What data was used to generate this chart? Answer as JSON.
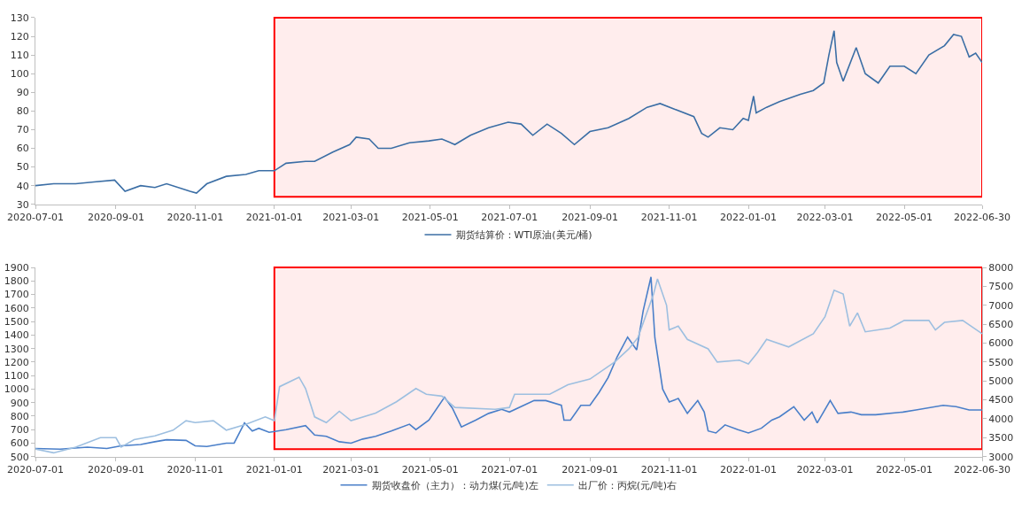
{
  "chart_data": [
    {
      "type": "line",
      "legend": "bottom",
      "xlim": [
        "2020-07-01",
        "2022-06-30"
      ],
      "xticks": [
        "2020-07-01",
        "2020-09-01",
        "2020-11-01",
        "2021-01-01",
        "2021-03-01",
        "2021-05-01",
        "2021-07-01",
        "2021-09-01",
        "2021-11-01",
        "2022-01-01",
        "2022-03-01",
        "2022-05-01",
        "2022-06-30"
      ],
      "ylim": [
        30,
        130
      ],
      "yticks": [
        30,
        40,
        50,
        60,
        70,
        80,
        90,
        100,
        110,
        120,
        130
      ],
      "bands": [
        {
          "axis": "x",
          "from": "2021-01-01",
          "to": "2022-06-30",
          "color": "#ff0000"
        }
      ],
      "series": [
        {
          "name": "期货结算价：WTI原油(美元/桶)",
          "color": "#3b6ea5",
          "x": [
            "2020-07-01",
            "2020-07-15",
            "2020-08-01",
            "2020-08-15",
            "2020-08-31",
            "2020-09-08",
            "2020-09-20",
            "2020-10-01",
            "2020-10-10",
            "2020-10-28",
            "2020-11-02",
            "2020-11-10",
            "2020-11-25",
            "2020-12-10",
            "2020-12-20",
            "2021-01-01",
            "2021-01-10",
            "2021-01-25",
            "2021-02-01",
            "2021-02-15",
            "2021-02-28",
            "2021-03-05",
            "2021-03-15",
            "2021-03-22",
            "2021-04-01",
            "2021-04-15",
            "2021-04-30",
            "2021-05-10",
            "2021-05-20",
            "2021-06-01",
            "2021-06-15",
            "2021-06-30",
            "2021-07-10",
            "2021-07-19",
            "2021-07-30",
            "2021-08-10",
            "2021-08-20",
            "2021-09-01",
            "2021-09-15",
            "2021-10-01",
            "2021-10-15",
            "2021-10-25",
            "2021-11-05",
            "2021-11-20",
            "2021-11-26",
            "2021-12-01",
            "2021-12-10",
            "2021-12-20",
            "2021-12-28",
            "2022-01-01",
            "2022-01-05",
            "2022-01-07",
            "2022-01-15",
            "2022-01-25",
            "2022-02-10",
            "2022-02-20",
            "2022-02-28",
            "2022-03-04",
            "2022-03-08",
            "2022-03-10",
            "2022-03-15",
            "2022-03-25",
            "2022-04-01",
            "2022-04-11",
            "2022-04-20",
            "2022-05-01",
            "2022-05-10",
            "2022-05-20",
            "2022-06-01",
            "2022-06-08",
            "2022-06-14",
            "2022-06-20",
            "2022-06-25",
            "2022-06-30"
          ],
          "values": [
            40,
            41,
            41,
            42,
            43,
            37,
            40,
            39,
            41,
            37,
            36,
            41,
            45,
            46,
            48,
            48,
            52,
            53,
            53,
            58,
            62,
            66,
            65,
            60,
            60,
            63,
            64,
            65,
            62,
            67,
            71,
            74,
            73,
            67,
            73,
            68,
            62,
            69,
            71,
            76,
            82,
            84,
            81,
            77,
            68,
            66,
            71,
            70,
            76,
            75,
            88,
            79,
            82,
            85,
            89,
            91,
            95,
            110,
            123,
            106,
            96,
            114,
            100,
            95,
            104,
            104,
            100,
            110,
            115,
            121,
            120,
            109,
            111,
            106
          ]
        }
      ]
    },
    {
      "type": "line",
      "legend": "bottom",
      "xlim": [
        "2020-07-01",
        "2022-06-30"
      ],
      "xticks": [
        "2020-07-01",
        "2020-09-01",
        "2020-11-01",
        "2021-01-01",
        "2021-03-01",
        "2021-05-01",
        "2021-07-01",
        "2021-09-01",
        "2021-11-01",
        "2022-01-01",
        "2022-03-01",
        "2022-05-01",
        "2022-06-30"
      ],
      "ylim": [
        500,
        1900
      ],
      "yticks": [
        500,
        600,
        700,
        800,
        900,
        1000,
        1100,
        1200,
        1300,
        1400,
        1500,
        1600,
        1700,
        1800,
        1900
      ],
      "y2lim": [
        3000,
        8000
      ],
      "y2ticks": [
        3000,
        3500,
        4000,
        4500,
        5000,
        5500,
        6000,
        6500,
        7000,
        7500,
        8000
      ],
      "bands": [
        {
          "axis": "x",
          "from": "2021-01-01",
          "to": "2022-06-30",
          "color": "#ff0000"
        }
      ],
      "series": [
        {
          "name": "期货收盘价（主力）：动力煤(元/吨)左",
          "color": "#4a7fc9",
          "x": [
            "2020-07-01",
            "2020-07-20",
            "2020-08-10",
            "2020-08-25",
            "2020-09-05",
            "2020-09-20",
            "2020-10-01",
            "2020-10-10",
            "2020-10-25",
            "2020-11-01",
            "2020-11-10",
            "2020-11-25",
            "2020-12-01",
            "2020-12-09",
            "2020-12-15",
            "2020-12-20",
            "2020-12-28",
            "2021-01-10",
            "2021-01-25",
            "2021-02-01",
            "2021-02-10",
            "2021-02-20",
            "2021-03-01",
            "2021-03-10",
            "2021-03-20",
            "2021-04-01",
            "2021-04-15",
            "2021-04-20",
            "2021-04-30",
            "2021-05-12",
            "2021-05-18",
            "2021-05-25",
            "2021-06-05",
            "2021-06-15",
            "2021-06-25",
            "2021-07-01",
            "2021-07-20",
            "2021-07-29",
            "2021-08-10",
            "2021-08-12",
            "2021-08-17",
            "2021-08-25",
            "2021-09-01",
            "2021-09-08",
            "2021-09-15",
            "2021-09-22",
            "2021-09-30",
            "2021-10-07",
            "2021-10-12",
            "2021-10-18",
            "2021-10-21",
            "2021-10-27",
            "2021-11-01",
            "2021-11-08",
            "2021-11-15",
            "2021-11-23",
            "2021-11-28",
            "2021-12-01",
            "2021-12-07",
            "2021-12-14",
            "2021-12-24",
            "2022-01-01",
            "2022-01-11",
            "2022-01-19",
            "2022-01-25",
            "2022-02-05",
            "2022-02-13",
            "2022-02-19",
            "2022-02-23",
            "2022-03-05",
            "2022-03-11",
            "2022-03-21",
            "2022-03-29",
            "2022-04-09",
            "2022-04-30",
            "2022-05-10",
            "2022-05-31",
            "2022-06-10",
            "2022-06-20",
            "2022-06-30"
          ],
          "values": [
            560,
            555,
            570,
            560,
            580,
            590,
            610,
            625,
            620,
            580,
            575,
            600,
            600,
            750,
            690,
            710,
            680,
            700,
            730,
            660,
            650,
            610,
            600,
            630,
            650,
            690,
            740,
            700,
            770,
            940,
            860,
            720,
            770,
            820,
            850,
            830,
            915,
            915,
            880,
            770,
            770,
            880,
            880,
            975,
            1085,
            1240,
            1385,
            1290,
            1580,
            1830,
            1380,
            1000,
            905,
            930,
            820,
            915,
            830,
            690,
            675,
            735,
            700,
            675,
            710,
            770,
            795,
            870,
            770,
            830,
            750,
            915,
            820,
            830,
            810,
            810,
            830,
            845,
            880,
            870,
            845,
            845
          ]
        },
        {
          "name": "出厂价：丙烷(元/吨)右",
          "color": "#9dbfe0",
          "axis": "y2",
          "x": [
            "2020-07-01",
            "2020-07-15",
            "2020-08-01",
            "2020-08-20",
            "2020-09-01",
            "2020-09-05",
            "2020-09-15",
            "2020-10-01",
            "2020-10-15",
            "2020-10-25",
            "2020-11-01",
            "2020-11-15",
            "2020-11-25",
            "2020-12-10",
            "2020-12-25",
            "2021-01-01",
            "2021-01-05",
            "2021-01-20",
            "2021-01-25",
            "2021-02-01",
            "2021-02-10",
            "2021-02-20",
            "2021-03-01",
            "2021-03-20",
            "2021-04-05",
            "2021-04-20",
            "2021-04-28",
            "2021-05-10",
            "2021-05-20",
            "2021-06-20",
            "2021-07-01",
            "2021-07-05",
            "2021-08-01",
            "2021-08-15",
            "2021-09-01",
            "2021-09-20",
            "2021-10-01",
            "2021-10-08",
            "2021-10-20",
            "2021-10-23",
            "2021-10-30",
            "2021-11-01",
            "2021-11-08",
            "2021-11-15",
            "2021-12-01",
            "2021-12-08",
            "2021-12-25",
            "2022-01-01",
            "2022-01-08",
            "2022-01-15",
            "2022-02-01",
            "2022-02-20",
            "2022-03-01",
            "2022-03-08",
            "2022-03-15",
            "2022-03-20",
            "2022-03-26",
            "2022-04-01",
            "2022-04-20",
            "2022-05-01",
            "2022-05-20",
            "2022-05-25",
            "2022-06-01",
            "2022-06-15",
            "2022-06-30"
          ],
          "values": [
            3200,
            3100,
            3250,
            3500,
            3500,
            3250,
            3450,
            3550,
            3700,
            3950,
            3900,
            3950,
            3700,
            3850,
            4050,
            3950,
            4850,
            5100,
            4800,
            4050,
            3900,
            4200,
            3950,
            4150,
            4450,
            4800,
            4650,
            4600,
            4300,
            4250,
            4300,
            4650,
            4650,
            4900,
            5050,
            5500,
            5850,
            6150,
            7300,
            7700,
            7000,
            6350,
            6450,
            6100,
            5850,
            5500,
            5550,
            5450,
            5750,
            6100,
            5900,
            6250,
            6700,
            7400,
            7300,
            6450,
            6800,
            6300,
            6400,
            6600,
            6600,
            6350,
            6550,
            6600,
            6250
          ]
        }
      ]
    }
  ]
}
